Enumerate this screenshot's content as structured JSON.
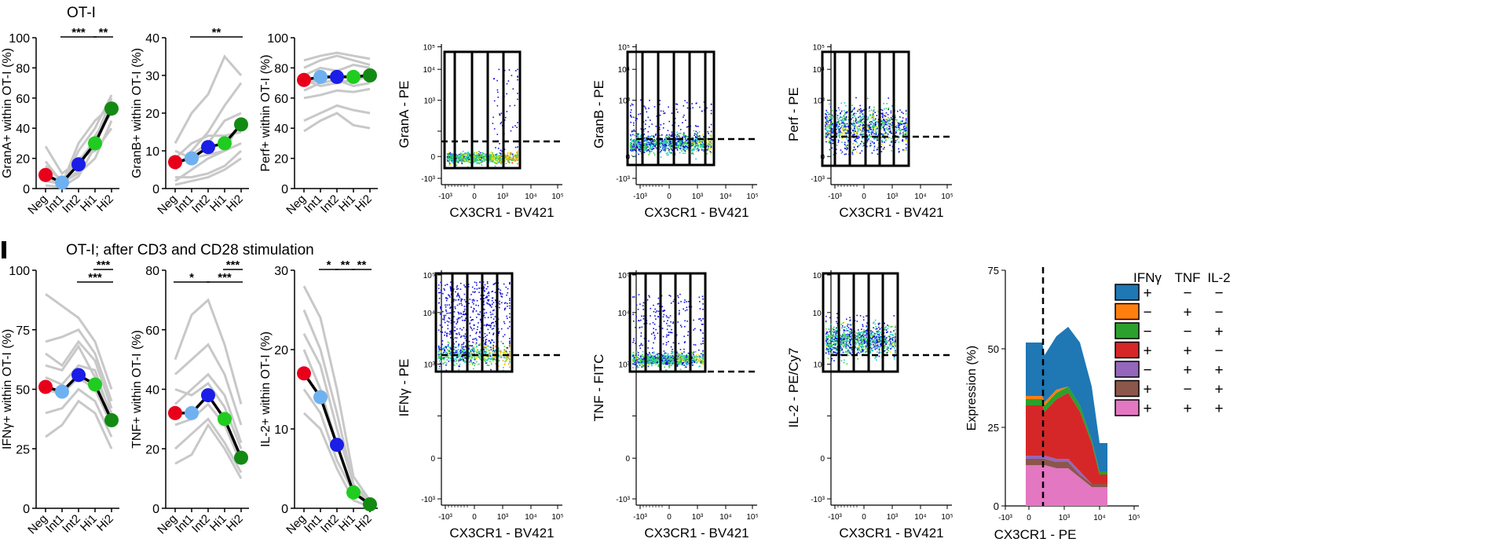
{
  "titles": {
    "row1": "OT-I",
    "row2": "OT-I; after CD3 and CD28 stimulation"
  },
  "colors": {
    "Neg": "#e8001b",
    "Int1": "#6fb1f0",
    "Int2": "#1a1ee6",
    "Hi1": "#1fcc1f",
    "Hi2": "#138a13",
    "gray": "#c8c8c8"
  },
  "chart_data": [
    {
      "type": "line",
      "ylabel": "GranA+ within OT-I (%)",
      "categories": [
        "Neg",
        "Int1",
        "Int2",
        "Hi1",
        "Hi2"
      ],
      "yticks": [
        0,
        20,
        40,
        60,
        80,
        100
      ],
      "ylim": [
        0,
        100
      ],
      "mean": [
        9,
        4,
        16,
        30,
        53
      ],
      "replicates": [
        [
          28,
          10,
          18,
          32,
          60
        ],
        [
          18,
          4,
          10,
          20,
          45
        ],
        [
          10,
          2,
          25,
          40,
          62
        ],
        [
          5,
          3,
          12,
          35,
          50
        ],
        [
          2,
          1,
          8,
          28,
          58
        ],
        [
          15,
          5,
          20,
          25,
          40
        ],
        [
          8,
          3,
          30,
          45,
          55
        ]
      ],
      "sig": [
        {
          "from": 1,
          "to": 3,
          "label": "***"
        },
        {
          "from": 3,
          "to": 4,
          "label": "**"
        }
      ]
    },
    {
      "type": "line",
      "ylabel": "GranB+ within OT-I (%)",
      "categories": [
        "Neg",
        "Int1",
        "Int2",
        "Hi1",
        "Hi2"
      ],
      "yticks": [
        0,
        10,
        20,
        30,
        40
      ],
      "ylim": [
        0,
        40
      ],
      "mean": [
        7,
        8,
        11,
        12,
        17
      ],
      "replicates": [
        [
          12,
          20,
          25,
          35,
          30
        ],
        [
          5,
          10,
          15,
          22,
          28
        ],
        [
          2,
          5,
          8,
          10,
          18
        ],
        [
          10,
          8,
          9,
          10,
          12
        ],
        [
          3,
          3,
          4,
          6,
          10
        ],
        [
          8,
          12,
          14,
          14,
          15
        ],
        [
          1,
          2,
          3,
          5,
          8
        ],
        [
          6,
          9,
          12,
          18,
          20
        ]
      ],
      "sig": [
        {
          "from": 1,
          "to": 4,
          "label": "**"
        }
      ]
    },
    {
      "type": "line",
      "ylabel": "Perf+ within OT-I (%)",
      "categories": [
        "Neg",
        "Int1",
        "Int2",
        "Hi1",
        "Hi2"
      ],
      "yticks": [
        0,
        20,
        40,
        60,
        80,
        100
      ],
      "ylim": [
        0,
        100
      ],
      "mean": [
        72,
        74,
        74,
        74,
        75
      ],
      "replicates": [
        [
          80,
          85,
          88,
          85,
          82
        ],
        [
          75,
          80,
          78,
          82,
          80
        ],
        [
          70,
          72,
          75,
          74,
          76
        ],
        [
          65,
          70,
          72,
          68,
          70
        ],
        [
          60,
          62,
          65,
          64,
          66
        ],
        [
          45,
          50,
          55,
          52,
          50
        ],
        [
          38,
          45,
          50,
          42,
          40
        ],
        [
          85,
          88,
          90,
          88,
          86
        ],
        [
          72,
          68,
          70,
          72,
          74
        ]
      ],
      "sig": []
    },
    {
      "type": "line",
      "ylabel": "IFNγ+ within OT-I (%)",
      "categories": [
        "Neg",
        "Int1",
        "Int2",
        "Hi1",
        "Hi2"
      ],
      "yticks": [
        0,
        25,
        50,
        75,
        100
      ],
      "ylim": [
        0,
        100
      ],
      "mean": [
        51,
        49,
        56,
        52,
        37
      ],
      "replicates": [
        [
          90,
          85,
          80,
          70,
          50
        ],
        [
          70,
          72,
          75,
          65,
          45
        ],
        [
          60,
          58,
          68,
          55,
          40
        ],
        [
          50,
          48,
          55,
          50,
          35
        ],
        [
          40,
          42,
          50,
          45,
          30
        ],
        [
          30,
          35,
          45,
          40,
          25
        ],
        [
          55,
          52,
          60,
          58,
          38
        ],
        [
          65,
          60,
          70,
          62,
          42
        ]
      ],
      "sig": [
        {
          "from": 2,
          "to": 4,
          "label": "***",
          "level": 1
        },
        {
          "from": 3,
          "to": 4,
          "label": "***",
          "level": 0
        }
      ]
    },
    {
      "type": "line",
      "ylabel": "TNF+ within OT-I (%)",
      "categories": [
        "Neg",
        "Int1",
        "Int2",
        "Hi1",
        "Hi2"
      ],
      "yticks": [
        0,
        20,
        40,
        60,
        80
      ],
      "ylim": [
        0,
        80
      ],
      "mean": [
        32,
        32,
        38,
        30,
        17
      ],
      "replicates": [
        [
          50,
          65,
          70,
          55,
          35
        ],
        [
          45,
          50,
          55,
          45,
          28
        ],
        [
          35,
          40,
          45,
          38,
          22
        ],
        [
          28,
          30,
          35,
          28,
          15
        ],
        [
          20,
          25,
          30,
          22,
          12
        ],
        [
          15,
          18,
          28,
          20,
          10
        ],
        [
          40,
          38,
          42,
          34,
          20
        ]
      ],
      "sig": [
        {
          "from": 0,
          "to": 2,
          "label": "*",
          "level": 1
        },
        {
          "from": 2,
          "to": 4,
          "label": "***",
          "level": 1
        },
        {
          "from": 3,
          "to": 4,
          "label": "***",
          "level": 0
        }
      ]
    },
    {
      "type": "line",
      "ylabel": "IL-2+ within OT-I (%)",
      "categories": [
        "Neg",
        "Int1",
        "Int2",
        "Hi1",
        "Hi2"
      ],
      "yticks": [
        0,
        10,
        20,
        30
      ],
      "ylim": [
        0,
        30
      ],
      "mean": [
        17,
        14,
        8,
        2,
        0.5
      ],
      "replicates": [
        [
          28,
          24,
          15,
          4,
          1
        ],
        [
          22,
          18,
          10,
          3,
          0.5
        ],
        [
          20,
          15,
          8,
          2,
          0.5
        ],
        [
          15,
          12,
          6,
          2,
          0.3
        ],
        [
          12,
          10,
          5,
          1,
          0.2
        ],
        [
          25,
          20,
          12,
          3,
          1
        ]
      ],
      "sig": [
        {
          "from": 1,
          "to": 2,
          "label": "*"
        },
        {
          "from": 2,
          "to": 3,
          "label": "**"
        },
        {
          "from": 3,
          "to": 4,
          "label": "**"
        }
      ]
    },
    {
      "type": "scatter",
      "xlabel": "CX3CR1 - BV421",
      "ylabel": "GranA - PE"
    },
    {
      "type": "scatter",
      "xlabel": "CX3CR1 - BV421",
      "ylabel": "GranB - PE"
    },
    {
      "type": "scatter",
      "xlabel": "CX3CR1 - BV421",
      "ylabel": "Perf - PE"
    },
    {
      "type": "scatter",
      "xlabel": "CX3CR1 - BV421",
      "ylabel": "IFNγ - PE"
    },
    {
      "type": "scatter",
      "xlabel": "CX3CR1 - BV421",
      "ylabel": "TNF - FITC"
    },
    {
      "type": "scatter",
      "xlabel": "CX3CR1 - BV421",
      "ylabel": "IL-2 - PE/Cy7"
    },
    {
      "type": "area",
      "xlabel": "CX3CR1 - PE",
      "ylabel": "Expression (%)",
      "yticks": [
        0,
        25,
        50,
        75
      ],
      "ylim": [
        0,
        75
      ],
      "legend_headers": [
        "IFNγ",
        "TNF",
        "IL-2"
      ],
      "series": [
        {
          "color": "#e377c2",
          "signs": [
            "+",
            "+",
            "+"
          ]
        },
        {
          "color": "#8c564b",
          "signs": [
            "+",
            "−",
            "+"
          ]
        },
        {
          "color": "#9467bd",
          "signs": [
            "−",
            "+",
            "+"
          ]
        },
        {
          "color": "#d62728",
          "signs": [
            "+",
            "+",
            "−"
          ]
        },
        {
          "color": "#2ca02c",
          "signs": [
            "−",
            "−",
            "+"
          ]
        },
        {
          "color": "#ff7f0e",
          "signs": [
            "−",
            "+",
            "−"
          ]
        },
        {
          "color": "#1f77b4",
          "signs": [
            "+",
            "−",
            "−"
          ]
        }
      ]
    }
  ]
}
